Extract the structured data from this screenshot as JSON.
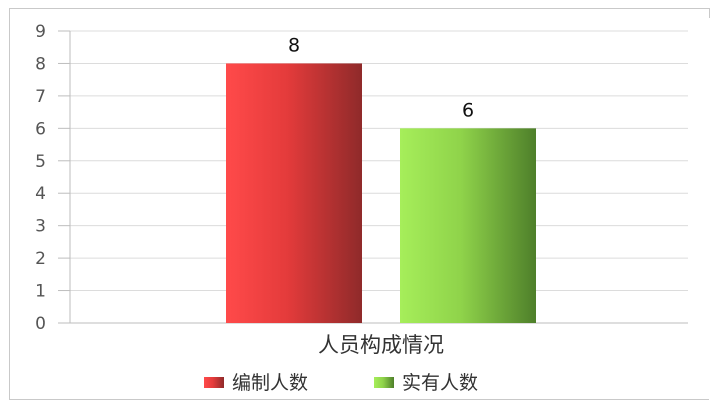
{
  "chart_data": {
    "type": "bar",
    "categories": [
      "人员构成情况"
    ],
    "series": [
      {
        "name": "编制人数",
        "values": [
          8
        ],
        "color": "#e83a3a"
      },
      {
        "name": "实有人数",
        "values": [
          6
        ],
        "color": "#8fcf47"
      }
    ],
    "xlabel": "",
    "ylabel": "",
    "ylim": [
      0,
      9
    ],
    "yticks": [
      "0",
      "1",
      "2",
      "3",
      "4",
      "5",
      "6",
      "7",
      "8",
      "9"
    ],
    "data_labels": [
      "8",
      "6"
    ],
    "grid": true,
    "legend_position": "bottom"
  }
}
